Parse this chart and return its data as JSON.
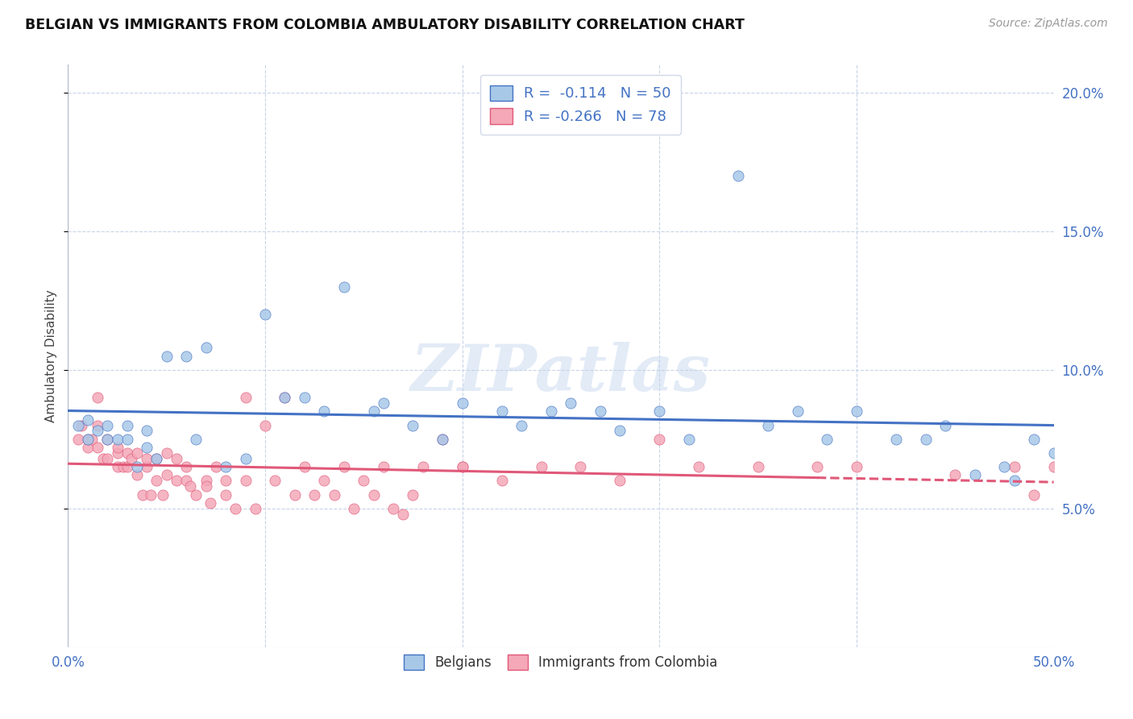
{
  "title": "BELGIAN VS IMMIGRANTS FROM COLOMBIA AMBULATORY DISABILITY CORRELATION CHART",
  "source": "Source: ZipAtlas.com",
  "ylabel": "Ambulatory Disability",
  "xlim": [
    0.0,
    0.5
  ],
  "ylim": [
    0.0,
    0.21
  ],
  "yticks": [
    0.05,
    0.1,
    0.15,
    0.2
  ],
  "ytick_labels": [
    "5.0%",
    "10.0%",
    "15.0%",
    "20.0%"
  ],
  "xticks": [
    0.0,
    0.1,
    0.2,
    0.3,
    0.4,
    0.5
  ],
  "xtick_labels": [
    "0.0%",
    "",
    "",
    "",
    "",
    "50.0%"
  ],
  "belgian_color": "#a8c8e8",
  "colombia_color": "#f4a8b8",
  "belgian_line_color": "#4472c4",
  "colombia_line_color": "#e05878",
  "R_belgian": -0.114,
  "N_belgian": 50,
  "R_colombia": -0.266,
  "N_colombia": 78,
  "watermark": "ZIPatlas",
  "background_color": "#ffffff",
  "grid_color": "#c8d4e8",
  "axis_color": "#4472c4",
  "legend_label_belgian": "Belgians",
  "legend_label_colombia": "Immigrants from Colombia",
  "belgian_x": [
    0.005,
    0.01,
    0.01,
    0.015,
    0.02,
    0.02,
    0.025,
    0.03,
    0.03,
    0.035,
    0.04,
    0.04,
    0.045,
    0.05,
    0.06,
    0.065,
    0.07,
    0.08,
    0.09,
    0.1,
    0.11,
    0.12,
    0.13,
    0.14,
    0.155,
    0.16,
    0.175,
    0.19,
    0.2,
    0.22,
    0.23,
    0.245,
    0.255,
    0.27,
    0.28,
    0.3,
    0.315,
    0.34,
    0.355,
    0.37,
    0.385,
    0.4,
    0.42,
    0.435,
    0.445,
    0.46,
    0.475,
    0.48,
    0.49,
    0.5
  ],
  "belgian_y": [
    0.08,
    0.075,
    0.082,
    0.078,
    0.08,
    0.075,
    0.075,
    0.075,
    0.08,
    0.065,
    0.078,
    0.072,
    0.068,
    0.105,
    0.105,
    0.075,
    0.108,
    0.065,
    0.068,
    0.12,
    0.09,
    0.09,
    0.085,
    0.13,
    0.085,
    0.088,
    0.08,
    0.075,
    0.088,
    0.085,
    0.08,
    0.085,
    0.088,
    0.085,
    0.078,
    0.085,
    0.075,
    0.17,
    0.08,
    0.085,
    0.075,
    0.085,
    0.075,
    0.075,
    0.08,
    0.062,
    0.065,
    0.06,
    0.075,
    0.07
  ],
  "colombia_x": [
    0.005,
    0.007,
    0.01,
    0.01,
    0.012,
    0.015,
    0.015,
    0.018,
    0.02,
    0.02,
    0.025,
    0.025,
    0.025,
    0.028,
    0.03,
    0.03,
    0.032,
    0.035,
    0.035,
    0.038,
    0.04,
    0.04,
    0.042,
    0.045,
    0.045,
    0.048,
    0.05,
    0.05,
    0.055,
    0.055,
    0.06,
    0.06,
    0.062,
    0.065,
    0.07,
    0.07,
    0.072,
    0.075,
    0.08,
    0.08,
    0.085,
    0.09,
    0.095,
    0.1,
    0.105,
    0.11,
    0.115,
    0.12,
    0.125,
    0.13,
    0.135,
    0.14,
    0.145,
    0.15,
    0.155,
    0.16,
    0.165,
    0.17,
    0.175,
    0.18,
    0.19,
    0.2,
    0.22,
    0.24,
    0.26,
    0.28,
    0.3,
    0.32,
    0.35,
    0.38,
    0.4,
    0.45,
    0.48,
    0.49,
    0.5,
    0.015,
    0.09,
    0.2
  ],
  "colombia_y": [
    0.075,
    0.08,
    0.072,
    0.075,
    0.075,
    0.072,
    0.08,
    0.068,
    0.075,
    0.068,
    0.07,
    0.065,
    0.072,
    0.065,
    0.07,
    0.065,
    0.068,
    0.062,
    0.07,
    0.055,
    0.065,
    0.068,
    0.055,
    0.06,
    0.068,
    0.055,
    0.07,
    0.062,
    0.06,
    0.068,
    0.06,
    0.065,
    0.058,
    0.055,
    0.06,
    0.058,
    0.052,
    0.065,
    0.055,
    0.06,
    0.05,
    0.06,
    0.05,
    0.08,
    0.06,
    0.09,
    0.055,
    0.065,
    0.055,
    0.06,
    0.055,
    0.065,
    0.05,
    0.06,
    0.055,
    0.065,
    0.05,
    0.048,
    0.055,
    0.065,
    0.075,
    0.065,
    0.06,
    0.065,
    0.065,
    0.06,
    0.075,
    0.065,
    0.065,
    0.065,
    0.065,
    0.062,
    0.065,
    0.055,
    0.065,
    0.09,
    0.09,
    0.065
  ]
}
